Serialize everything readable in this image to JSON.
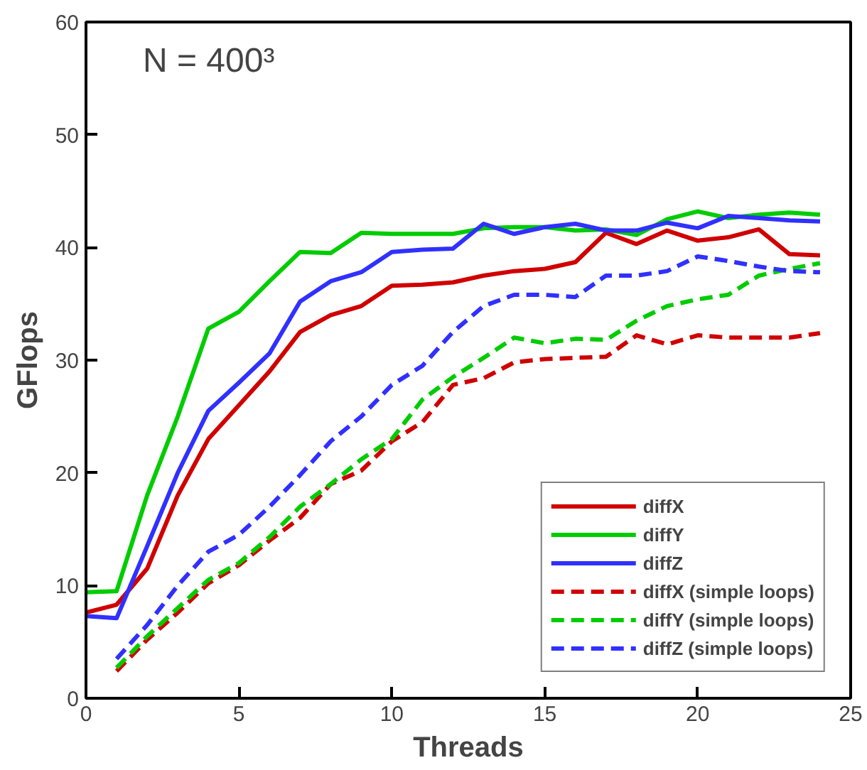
{
  "chart_data": {
    "type": "line",
    "xlabel": "Threads",
    "ylabel": "GFlops",
    "annotations": [
      "N = 400³"
    ],
    "xlim": [
      0,
      25
    ],
    "ylim": [
      0,
      60
    ],
    "xticks": [
      0,
      5,
      10,
      15,
      20,
      25
    ],
    "yticks": [
      0,
      10,
      20,
      30,
      40,
      50,
      60
    ],
    "grid": false,
    "legend": "bottom right",
    "marker": "none",
    "series": [
      {
        "name": "diffX",
        "color": "#d00000",
        "line_style": "solid",
        "x": [
          0,
          1,
          2,
          3,
          4,
          5,
          6,
          7,
          8,
          9,
          10,
          11,
          12,
          13,
          14,
          15,
          16,
          17,
          18,
          19,
          20,
          21,
          22,
          23,
          24
        ],
        "values": [
          7.6,
          8.3,
          11.5,
          18,
          23,
          26,
          29,
          32.5,
          34,
          34.8,
          36.6,
          36.7,
          36.9,
          37.5,
          37.9,
          38.1,
          38.7,
          41.3,
          40.3,
          41.5,
          40.6,
          40.9,
          41.6,
          39.4,
          39.3
        ]
      },
      {
        "name": "diffY",
        "color": "#00cc00",
        "line_style": "solid",
        "x": [
          0,
          1,
          2,
          3,
          4,
          5,
          6,
          7,
          8,
          9,
          10,
          11,
          12,
          13,
          14,
          15,
          16,
          17,
          18,
          19,
          20,
          21,
          22,
          23,
          24
        ],
        "values": [
          9.4,
          9.5,
          18,
          25,
          32.8,
          34.3,
          37,
          39.6,
          39.5,
          41.3,
          41.2,
          41.2,
          41.2,
          41.7,
          41.8,
          41.8,
          41.5,
          41.6,
          41.1,
          42.5,
          43.2,
          42.6,
          42.9,
          43.1,
          42.9
        ]
      },
      {
        "name": "diffZ",
        "color": "#3030ff",
        "line_style": "solid",
        "x": [
          0,
          1,
          2,
          3,
          4,
          5,
          6,
          7,
          8,
          9,
          10,
          11,
          12,
          13,
          14,
          15,
          16,
          17,
          18,
          19,
          20,
          21,
          22,
          23,
          24
        ],
        "values": [
          7.3,
          7.1,
          13.5,
          20,
          25.5,
          28,
          30.6,
          35.2,
          37,
          37.8,
          39.6,
          39.8,
          39.9,
          42.1,
          41.2,
          41.8,
          42.1,
          41.5,
          41.5,
          42.2,
          41.7,
          42.8,
          42.6,
          42.4,
          42.3
        ]
      },
      {
        "name": "diffX (simple loops)",
        "color": "#d00000",
        "line_style": "dashed",
        "x": [
          1,
          2,
          3,
          4,
          5,
          6,
          7,
          8,
          9,
          10,
          11,
          12,
          13,
          14,
          15,
          16,
          17,
          18,
          19,
          20,
          21,
          22,
          23,
          24
        ],
        "values": [
          2.4,
          5.2,
          7.6,
          10.2,
          11.8,
          14,
          16,
          19,
          20.2,
          22.8,
          24.5,
          27.8,
          28.4,
          29.8,
          30.1,
          30.2,
          30.3,
          32.2,
          31.4,
          32.2,
          32,
          32,
          32,
          32.4
        ]
      },
      {
        "name": "diffY (simple loops)",
        "color": "#00cc00",
        "line_style": "dashed",
        "x": [
          1,
          2,
          3,
          4,
          5,
          6,
          7,
          8,
          9,
          10,
          11,
          12,
          13,
          14,
          15,
          16,
          17,
          18,
          19,
          20,
          21,
          22,
          23,
          24
        ],
        "values": [
          2.7,
          5.5,
          8,
          10.5,
          12,
          14.3,
          17,
          19,
          21.2,
          23,
          26.5,
          28.5,
          30.2,
          32,
          31.5,
          31.9,
          31.8,
          33.5,
          34.8,
          35.4,
          35.8,
          37.5,
          38.1,
          38.6
        ]
      },
      {
        "name": "diffZ (simple loops)",
        "color": "#3030ff",
        "line_style": "dashed",
        "x": [
          1,
          2,
          3,
          4,
          5,
          6,
          7,
          8,
          9,
          10,
          11,
          12,
          13,
          14,
          15,
          16,
          17,
          18,
          19,
          20,
          21,
          22,
          23,
          24
        ],
        "values": [
          3.5,
          6.5,
          10,
          13,
          14.5,
          17,
          19.8,
          22.8,
          25,
          27.8,
          29.5,
          32.5,
          34.8,
          35.8,
          35.8,
          35.6,
          37.5,
          37.5,
          37.9,
          39.2,
          38.8,
          38.3,
          37.9,
          37.8
        ]
      }
    ]
  }
}
